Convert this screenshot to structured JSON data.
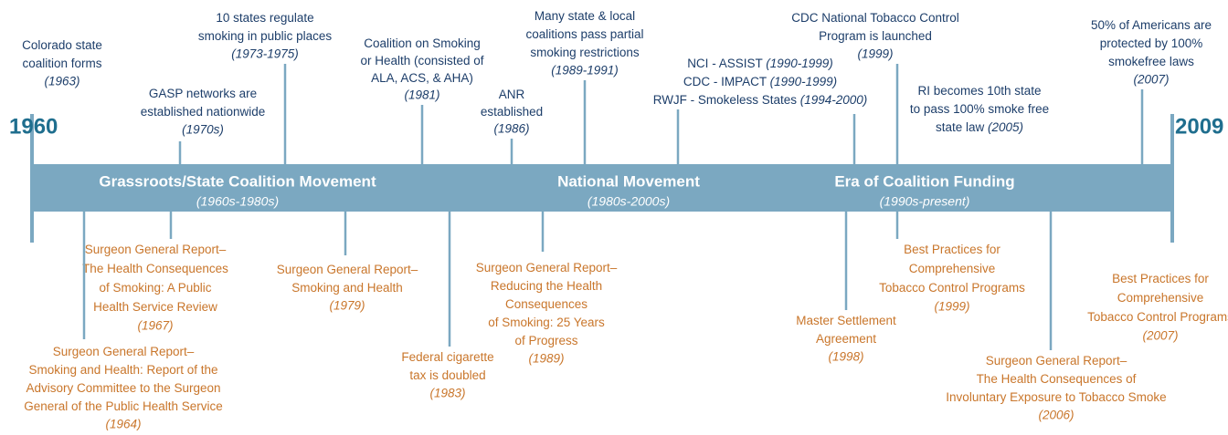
{
  "start_year": "1960",
  "end_year": "2009",
  "bands": [
    {
      "title": "Grassroots/State Coalition Movement",
      "period": "(1960s-1980s)"
    },
    {
      "title": "National Movement",
      "period": "(1980s-2000s)"
    },
    {
      "title": "Era of Coalition Funding",
      "period": "(1990s-present)"
    }
  ],
  "events_above": [
    {
      "lines": [
        "Colorado state",
        "coalition forms"
      ],
      "date": "(1963)"
    },
    {
      "lines": [
        "GASP networks are",
        "established nationwide"
      ],
      "date": "(1970s)"
    },
    {
      "lines": [
        "10 states regulate",
        "smoking in public places"
      ],
      "date": "(1973-1975)"
    },
    {
      "lines": [
        "Coalition on Smoking",
        "or Health (consisted of",
        "ALA, ACS, & AHA)"
      ],
      "date": "(1981)"
    },
    {
      "lines": [
        "ANR",
        "established"
      ],
      "date": "(1986)"
    },
    {
      "lines": [
        "Many state & local",
        "coalitions pass partial",
        "smoking restrictions"
      ],
      "date": "(1989-1991)"
    },
    {
      "lines": [
        "NCI - ASSIST",
        "CDC - IMPACT",
        "RWJF - Smokeless States"
      ],
      "dates": [
        "(1990-1999)",
        "(1990-1999)",
        "(1994-2000)"
      ]
    },
    {
      "lines": [
        "CDC National Tobacco Control",
        "Program is launched"
      ],
      "date": "(1999)"
    },
    {
      "lines": [
        "RI becomes 10th state",
        "to pass 100% smoke free",
        "state law"
      ],
      "date": "(2005)",
      "date_inline": true
    },
    {
      "lines": [
        "50% of Americans are",
        "protected by 100%",
        "smokefree laws"
      ],
      "date": "(2007)"
    }
  ],
  "events_below": [
    {
      "lines": [
        "Surgeon General Report–",
        "The Health Consequences",
        "of Smoking:  A Public",
        "Health Service Review"
      ],
      "date": "(1967)"
    },
    {
      "lines": [
        "Surgeon General Report–",
        "Smoking and Health: Report of the",
        "Advisory Committee to the Surgeon",
        "General of the Public Health Service"
      ],
      "date": "(1964)"
    },
    {
      "lines": [
        "Surgeon General Report–",
        "Smoking and Health"
      ],
      "date": "(1979)"
    },
    {
      "lines": [
        "Federal cigarette",
        "tax is doubled"
      ],
      "date": "(1983)"
    },
    {
      "lines": [
        "Surgeon General Report–",
        "Reducing the Health",
        "Consequences",
        "of Smoking: 25 Years",
        "of Progress"
      ],
      "date": "(1989)"
    },
    {
      "lines": [
        "Master Settlement",
        "Agreement"
      ],
      "date": "(1998)"
    },
    {
      "lines": [
        "Best Practices for",
        "Comprehensive",
        "Tobacco Control Programs"
      ],
      "date": "(1999)"
    },
    {
      "lines": [
        "Surgeon General Report–",
        "The Health Consequences of",
        "Involuntary Exposure to Tobacco Smoke"
      ],
      "date": "(2006)"
    },
    {
      "lines": [
        "Best Practices for",
        "Comprehensive",
        "Tobacco Control Programs"
      ],
      "date": "(2007)"
    }
  ]
}
